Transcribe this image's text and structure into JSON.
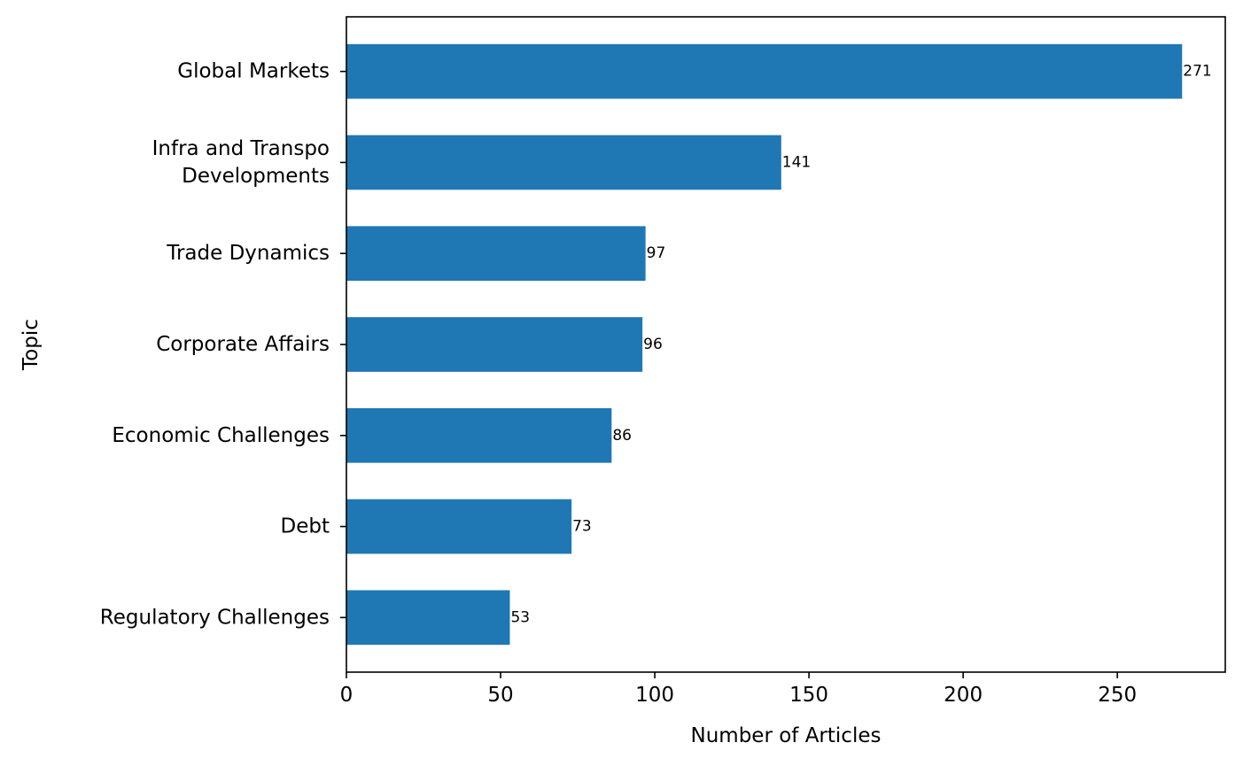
{
  "chart_data": {
    "type": "bar",
    "orientation": "horizontal",
    "categories": [
      [
        "Global Markets"
      ],
      [
        "Infra and Transpo",
        "Developments"
      ],
      [
        "Trade Dynamics"
      ],
      [
        "Corporate Affairs"
      ],
      [
        "Economic Challenges"
      ],
      [
        "Debt"
      ],
      [
        "Regulatory Challenges"
      ]
    ],
    "values": [
      271,
      141,
      97,
      96,
      86,
      73,
      53
    ],
    "xlabel": "Number of Articles",
    "ylabel": "Topic",
    "xlim": [
      0,
      285
    ],
    "xticks": [
      0,
      50,
      100,
      150,
      200,
      250
    ],
    "bar_color": "#1f77b4",
    "grid": false,
    "legend": "none"
  }
}
